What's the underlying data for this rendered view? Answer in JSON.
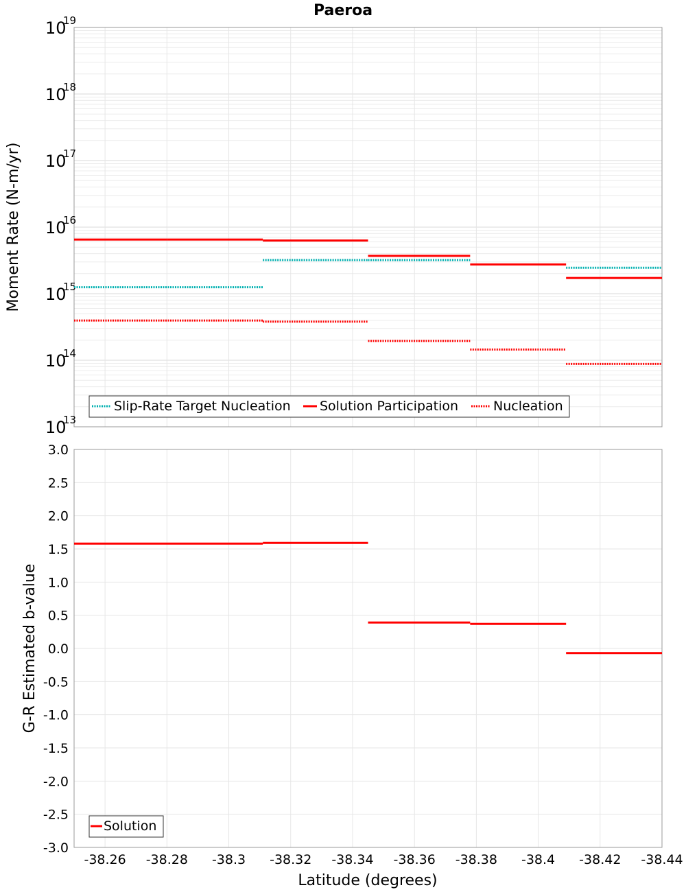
{
  "chart_data": [
    {
      "type": "line",
      "title": "Paeroa",
      "xlabel": "",
      "ylabel": "Moment Rate (N-m/yr)",
      "yscale": "log",
      "ylim": [
        10000000000000.0,
        1e+19
      ],
      "xlim": [
        -38.25,
        -38.44
      ],
      "grid": true,
      "legend_position": "bottom-left",
      "y_tick_bases": [
        "10",
        "10",
        "10",
        "10",
        "10",
        "10",
        "10"
      ],
      "y_tick_exponents": [
        "13",
        "14",
        "15",
        "16",
        "17",
        "18",
        "19"
      ],
      "series": [
        {
          "name": "Slip-Rate Target Nucleation",
          "color": "#00b0b0",
          "style": "dotted",
          "segments": [
            {
              "x": [
                -38.25,
                -38.311
              ],
              "y": 1250000000000000.0
            },
            {
              "x": [
                -38.311,
                -38.345
              ],
              "y": 3200000000000000.0
            },
            {
              "x": [
                -38.345,
                -38.378
              ],
              "y": 3200000000000000.0
            },
            {
              "x": [
                -38.409,
                -38.44
              ],
              "y": 2450000000000000.0
            }
          ]
        },
        {
          "name": "Solution Participation",
          "color": "#ff0000",
          "style": "solid",
          "segments": [
            {
              "x": [
                -38.25,
                -38.28
              ],
              "y": 6500000000000000.0
            },
            {
              "x": [
                -38.28,
                -38.311
              ],
              "y": 6500000000000000.0
            },
            {
              "x": [
                -38.311,
                -38.345
              ],
              "y": 6300000000000000.0
            },
            {
              "x": [
                -38.345,
                -38.378
              ],
              "y": 3700000000000000.0
            },
            {
              "x": [
                -38.378,
                -38.409
              ],
              "y": 2750000000000000.0
            },
            {
              "x": [
                -38.409,
                -38.44
              ],
              "y": 1720000000000000.0
            }
          ]
        },
        {
          "name": "Nucleation",
          "color": "#ff0000",
          "style": "dotted",
          "segments": [
            {
              "x": [
                -38.25,
                -38.311
              ],
              "y": 395000000000000.0
            },
            {
              "x": [
                -38.311,
                -38.345
              ],
              "y": 380000000000000.0
            },
            {
              "x": [
                -38.345,
                -38.378
              ],
              "y": 195000000000000.0
            },
            {
              "x": [
                -38.378,
                -38.409
              ],
              "y": 145000000000000.0
            },
            {
              "x": [
                -38.409,
                -38.44
              ],
              "y": 88000000000000.0
            }
          ]
        }
      ]
    },
    {
      "type": "line",
      "title": "",
      "xlabel": "Latitude (degrees)",
      "ylabel": "G-R Estimated b-value",
      "ylim": [
        -3.0,
        3.0
      ],
      "xlim": [
        -38.25,
        -38.44
      ],
      "grid": true,
      "legend_position": "bottom-left",
      "x_ticks": [
        "-38.26",
        "-38.28",
        "-38.3",
        "-38.32",
        "-38.34",
        "-38.36",
        "-38.38",
        "-38.4",
        "-38.42",
        "-38.44"
      ],
      "y_ticks": [
        "3.0",
        "2.5",
        "2.0",
        "1.5",
        "1.0",
        "0.5",
        "0.0",
        "-0.5",
        "-1.0",
        "-1.5",
        "-2.0",
        "-2.5",
        "-3.0"
      ],
      "series": [
        {
          "name": "Solution",
          "color": "#ff0000",
          "style": "solid",
          "segments": [
            {
              "x": [
                -38.25,
                -38.311
              ],
              "y": 1.58
            },
            {
              "x": [
                -38.311,
                -38.345
              ],
              "y": 1.59
            },
            {
              "x": [
                -38.345,
                -38.378
              ],
              "y": 0.39
            },
            {
              "x": [
                -38.378,
                -38.409
              ],
              "y": 0.37
            },
            {
              "x": [
                -38.409,
                -38.44
              ],
              "y": -0.07
            }
          ]
        }
      ]
    }
  ]
}
